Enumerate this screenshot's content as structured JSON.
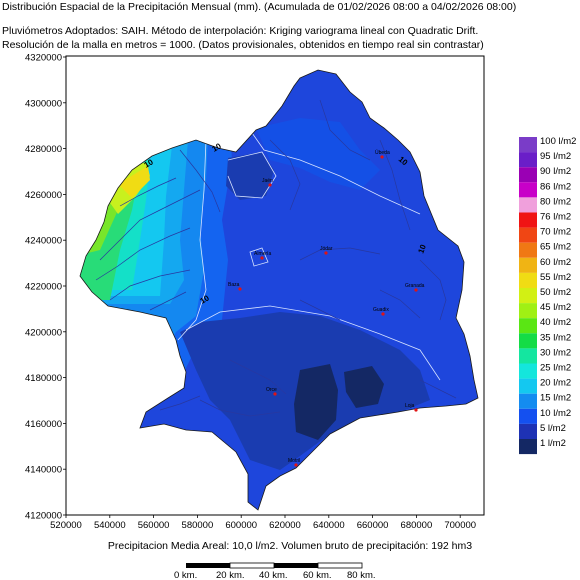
{
  "header": {
    "title": "Distribución Espacial de la Precipitación Mensual (mm). (Acumulada de 01/02/2026 08:00 a 04/02/2026 08:00)",
    "method": "Pluviómetros Adoptados: SAIH.  Método de interpolación: Kriging variograma lineal con Quadratic Drift.",
    "resolution": "Resolución de la malla en metros = 1000. (Datos provisionales, obtenidos en tiempo real sin contrastar)"
  },
  "axes": {
    "y_ticks": [
      "4320000",
      "4300000",
      "4280000",
      "4260000",
      "4240000",
      "4220000",
      "4200000",
      "4180000",
      "4160000",
      "4140000",
      "4120000"
    ],
    "x_ticks": [
      "520000",
      "540000",
      "560000",
      "580000",
      "600000",
      "620000",
      "640000",
      "660000",
      "680000",
      "700000"
    ]
  },
  "legend": {
    "items": [
      {
        "label": "100 l/m2",
        "color": "#7a3cc8"
      },
      {
        "label": "95 l/m2",
        "color": "#6a1ec8"
      },
      {
        "label": "90 l/m2",
        "color": "#9a00b4"
      },
      {
        "label": "86 l/m2",
        "color": "#c800c8"
      },
      {
        "label": "80 l/m2",
        "color": "#f0a0dc"
      },
      {
        "label": "76 l/m2",
        "color": "#f01414"
      },
      {
        "label": "70 l/m2",
        "color": "#f04614"
      },
      {
        "label": "65 l/m2",
        "color": "#f07814"
      },
      {
        "label": "60 l/m2",
        "color": "#f0b414"
      },
      {
        "label": "55 l/m2",
        "color": "#f0dc14"
      },
      {
        "label": "50 l/m2",
        "color": "#d2f014"
      },
      {
        "label": "45 l/m2",
        "color": "#a0f014"
      },
      {
        "label": "40 l/m2",
        "color": "#5ae614"
      },
      {
        "label": "35 l/m2",
        "color": "#14dc46"
      },
      {
        "label": "30 l/m2",
        "color": "#14e6a0"
      },
      {
        "label": "25 l/m2",
        "color": "#14e6dc"
      },
      {
        "label": "20 l/m2",
        "color": "#14c8f0"
      },
      {
        "label": "15 l/m2",
        "color": "#148cf0"
      },
      {
        "label": "10 l/m2",
        "color": "#1450f0"
      },
      {
        "label": "5 l/m2",
        "color": "#1e32b4"
      },
      {
        "label": "1 l/m2",
        "color": "#142864"
      }
    ]
  },
  "contour_labels": [
    "10",
    "10",
    "10",
    "10",
    "10"
  ],
  "cities": [
    {
      "name": "Jaén"
    },
    {
      "name": "Úbeda"
    },
    {
      "name": "Jódar"
    },
    {
      "name": "Baza"
    },
    {
      "name": "Granada"
    },
    {
      "name": "Guadix"
    },
    {
      "name": "Orce"
    },
    {
      "name": "Loja"
    },
    {
      "name": "Motril"
    },
    {
      "name": "Almería"
    }
  ],
  "footer": {
    "summary": "Precipitacion Media Areal: 10,0 l/m2. Volumen bruto de precipitación: 192 hm3",
    "scale_labels": [
      "0 km.",
      "20 km.",
      "40 km.",
      "60 km.",
      "80 km."
    ]
  }
}
